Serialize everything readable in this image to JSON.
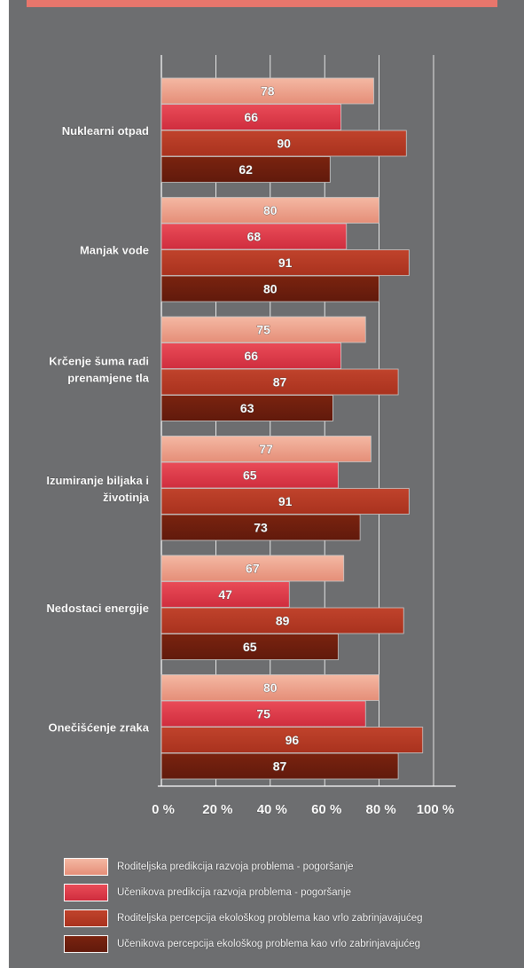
{
  "chart_data": {
    "type": "bar",
    "orientation": "horizontal",
    "categories": [
      [
        "Nuklearni otpad"
      ],
      [
        "Manjak vode"
      ],
      [
        "Krčenje šuma radi",
        "prenamjene tla"
      ],
      [
        "Izumiranje biljaka i",
        "životinja"
      ],
      [
        "Nedostaci energije"
      ],
      [
        "Onečišćenje zraka"
      ]
    ],
    "series": [
      {
        "name": "Roditeljska predikcija razvoja problema - pogoršanje",
        "values": [
          78,
          80,
          75,
          77,
          67,
          80
        ],
        "color": "#e58e78",
        "color_light": "#f4b8a3"
      },
      {
        "name": "Učenikova predikcija razvoja problema - pogoršanje",
        "values": [
          66,
          68,
          66,
          65,
          47,
          75
        ],
        "color": "#cf2d3e",
        "color_light": "#ea4c58"
      },
      {
        "name": "Roditeljska percepcija ekološkog problema kao vrlo zabrinjavajućeg",
        "values": [
          90,
          91,
          87,
          91,
          89,
          96
        ],
        "color": "#a9321e",
        "color_light": "#c0432c"
      },
      {
        "name": "Učenikova percepcija ekološkog problema kao vrlo zabrinjavajućeg",
        "values": [
          62,
          80,
          63,
          73,
          65,
          87
        ],
        "color": "#611a0c",
        "color_light": "#7a230f"
      }
    ],
    "x_ticks": [
      "0 %",
      "20 %",
      "40 %",
      "60 %",
      "80 %",
      "100 %"
    ],
    "xlim": [
      0,
      100
    ],
    "grid": true,
    "legend_position": "bottom"
  },
  "colors": {
    "background": "#6d6e70",
    "top_band": "#e8766c",
    "gridline": "#ffffff",
    "label_text": "#ffffff"
  }
}
